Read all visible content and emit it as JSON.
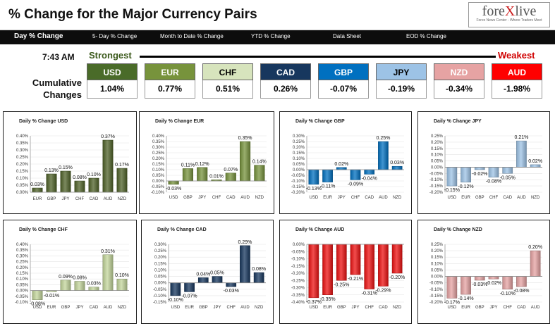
{
  "header": {
    "title": "% Change for the Major Currency Pairs",
    "logo": {
      "part1": "fore",
      "part2": "X",
      "part3": "live",
      "tagline": "Forex News Center - Where Traders Meet"
    }
  },
  "nav": {
    "items": [
      "Day % Change",
      "5- Day % Change",
      "Month to Date % Change",
      "YTD % Change",
      "Data Sheet",
      "EOD % Change"
    ],
    "active": "Day % Change"
  },
  "summary": {
    "time": "7:43 AM",
    "strongest": "Strongest",
    "weakest": "Weakest",
    "cumulative_label_1": "Cumulative",
    "cumulative_label_2": "Changes",
    "currencies": [
      {
        "name": "USD",
        "value": "1.04%",
        "color": "#4a6b29",
        "text_color": "#ffffff"
      },
      {
        "name": "EUR",
        "value": "0.77%",
        "color": "#77933c",
        "text_color": "#ffffff"
      },
      {
        "name": "CHF",
        "value": "0.51%",
        "color": "#d7e4bd",
        "text_color": "#000000"
      },
      {
        "name": "CAD",
        "value": "0.26%",
        "color": "#17375e",
        "text_color": "#ffffff"
      },
      {
        "name": "GBP",
        "value": "-0.07%",
        "color": "#0070c0",
        "text_color": "#ffffff"
      },
      {
        "name": "JPY",
        "value": "-0.19%",
        "color": "#9dc3e6",
        "text_color": "#000000"
      },
      {
        "name": "NZD",
        "value": "-0.34%",
        "color": "#e6a3a3",
        "text_color": "#ffffff"
      },
      {
        "name": "AUD",
        "value": "-1.98%",
        "color": "#ff0000",
        "text_color": "#ffffff"
      }
    ]
  },
  "chart_data": [
    {
      "type": "bar",
      "title": "Daily % Change USD",
      "bar_color": "#4f6228",
      "bg": "#ffffff",
      "categories": [
        "EUR",
        "GBP",
        "JPY",
        "CHF",
        "CAD",
        "AUD",
        "NZD"
      ],
      "values": [
        0.03,
        0.13,
        0.15,
        0.08,
        0.1,
        0.37,
        0.17
      ],
      "labels": [
        "0.03%",
        "0.13%",
        "0.15%",
        "0.08%",
        "0.10%",
        "0.37%",
        "0.17%"
      ],
      "ylim": [
        0,
        0.4
      ],
      "yticks": [
        0,
        0.05,
        0.1,
        0.15,
        0.2,
        0.25,
        0.3,
        0.35,
        0.4
      ],
      "yticklabels": [
        "0.00%",
        "0.05%",
        "0.10%",
        "0.15%",
        "0.20%",
        "0.25%",
        "0.30%",
        "0.35%",
        "0.40%"
      ]
    },
    {
      "type": "bar",
      "title": "Daily % Change EUR",
      "bar_color": "#77933c",
      "bg": "#ffffff",
      "categories": [
        "USD",
        "GBP",
        "JPY",
        "CHF",
        "CAD",
        "AUD",
        "NZD"
      ],
      "values": [
        -0.03,
        0.11,
        0.12,
        0.01,
        0.07,
        0.35,
        0.14
      ],
      "labels": [
        "-0.03%",
        "0.11%",
        "0.12%",
        "0.01%",
        "0.07%",
        "0.35%",
        "0.14%"
      ],
      "ylim": [
        -0.1,
        0.4
      ],
      "yticks": [
        -0.1,
        -0.05,
        0,
        0.05,
        0.1,
        0.15,
        0.2,
        0.25,
        0.3,
        0.35,
        0.4
      ],
      "yticklabels": [
        "-0.10%",
        "-0.05%",
        "0.00%",
        "0.05%",
        "0.10%",
        "0.15%",
        "0.20%",
        "0.25%",
        "0.30%",
        "0.35%",
        "0.40%"
      ]
    },
    {
      "type": "bar",
      "title": "Daily % Change GBP",
      "bar_color": "#0070c0",
      "bg": "#ffffff",
      "categories": [
        "USD",
        "EUR",
        "JPY",
        "CHF",
        "CAD",
        "AUD",
        "NZD"
      ],
      "values": [
        -0.13,
        -0.11,
        0.02,
        -0.09,
        -0.04,
        0.25,
        0.03
      ],
      "labels": [
        "-0.13%",
        "-0.11%",
        "0.02%",
        "-0.09%",
        "-0.04%",
        "0.25%",
        "0.03%"
      ],
      "ylim": [
        -0.2,
        0.3
      ],
      "yticks": [
        -0.2,
        -0.15,
        -0.1,
        -0.05,
        0,
        0.05,
        0.1,
        0.15,
        0.2,
        0.25,
        0.3
      ],
      "yticklabels": [
        "-0.20%",
        "-0.15%",
        "-0.10%",
        "-0.05%",
        "0.00%",
        "0.05%",
        "0.10%",
        "0.15%",
        "0.20%",
        "0.25%",
        "0.30%"
      ]
    },
    {
      "type": "bar",
      "title": "Daily % Change JPY",
      "bar_color": "#9dc3e6",
      "bg": "#ffffff",
      "categories": [
        "USD",
        "EUR",
        "GBP",
        "CHF",
        "CAD",
        "AUD",
        "NZD"
      ],
      "values": [
        -0.15,
        -0.12,
        -0.02,
        -0.08,
        -0.05,
        0.21,
        0.02
      ],
      "labels": [
        "-0.15%",
        "-0.12%",
        "-0.02%",
        "-0.08%",
        "-0.05%",
        "0.21%",
        "0.02%"
      ],
      "ylim": [
        -0.2,
        0.25
      ],
      "yticks": [
        -0.2,
        -0.15,
        -0.1,
        -0.05,
        0,
        0.05,
        0.1,
        0.15,
        0.2,
        0.25
      ],
      "yticklabels": [
        "-0.20%",
        "-0.15%",
        "-0.10%",
        "-0.05%",
        "0.00%",
        "0.05%",
        "0.10%",
        "0.15%",
        "0.20%",
        "0.25%"
      ]
    },
    {
      "type": "bar",
      "title": "Daily % Change CHF",
      "bar_color": "#c3d69b",
      "bg": "#ffffff",
      "categories": [
        "USD",
        "EUR",
        "GBP",
        "JPY",
        "CAD",
        "AUD",
        "NZD"
      ],
      "values": [
        -0.08,
        -0.01,
        0.09,
        0.08,
        0.03,
        0.31,
        0.1
      ],
      "labels": [
        "-0.08%",
        "-0.01%",
        "0.09%",
        "0.08%",
        "0.03%",
        "0.31%",
        "0.10%"
      ],
      "ylim": [
        -0.1,
        0.4
      ],
      "yticks": [
        -0.1,
        -0.05,
        0,
        0.05,
        0.1,
        0.15,
        0.2,
        0.25,
        0.3,
        0.35,
        0.4
      ],
      "yticklabels": [
        "-0.10%",
        "-0.05%",
        "0.00%",
        "0.05%",
        "0.10%",
        "0.15%",
        "0.20%",
        "0.25%",
        "0.30%",
        "0.35%",
        "0.40%"
      ]
    },
    {
      "type": "bar",
      "title": "Daily % Change CAD",
      "bar_color": "#17375e",
      "bg": "#ffffff",
      "categories": [
        "USD",
        "EUR",
        "GBP",
        "JPY",
        "CHF",
        "AUD",
        "NZD"
      ],
      "values": [
        -0.1,
        -0.07,
        0.04,
        0.05,
        -0.03,
        0.29,
        0.08
      ],
      "labels": [
        "-0.10%",
        "-0.07%",
        "0.04%",
        "0.05%",
        "-0.03%",
        "0.29%",
        "0.08%"
      ],
      "ylim": [
        -0.15,
        0.3
      ],
      "yticks": [
        -0.15,
        -0.1,
        -0.05,
        0,
        0.05,
        0.1,
        0.15,
        0.2,
        0.25,
        0.3
      ],
      "yticklabels": [
        "-0.15%",
        "-0.10%",
        "-0.05%",
        "0.00%",
        "0.05%",
        "0.10%",
        "0.15%",
        "0.20%",
        "0.25%",
        "0.30%"
      ]
    },
    {
      "type": "bar",
      "title": "Daily % Change AUD",
      "bar_color": "#ee1111",
      "bg": "#ffffff",
      "categories": [
        "USD",
        "EUR",
        "GBP",
        "JPY",
        "CHF",
        "CAD",
        "NZD"
      ],
      "values": [
        -0.37,
        -0.35,
        -0.25,
        -0.21,
        -0.31,
        -0.29,
        -0.2
      ],
      "labels": [
        "-0.37%",
        "-0.35%",
        "-0.25%",
        "-0.21%",
        "-0.31%",
        "-0.29%",
        "-0.20%"
      ],
      "ylim": [
        -0.4,
        0
      ],
      "yticks": [
        -0.4,
        -0.35,
        -0.3,
        -0.25,
        -0.2,
        -0.15,
        -0.1,
        -0.05,
        0
      ],
      "yticklabels": [
        "-0.40%",
        "-0.35%",
        "-0.30%",
        "-0.25%",
        "-0.20%",
        "-0.15%",
        "-0.10%",
        "-0.05%",
        "0.00%"
      ]
    },
    {
      "type": "bar",
      "title": "Daily % Change NZD",
      "bar_color": "#e6a3a3",
      "bg": "#ffffff",
      "categories": [
        "USD",
        "EUR",
        "GBP",
        "JPY",
        "CHF",
        "CAD",
        "AUD"
      ],
      "values": [
        -0.17,
        -0.14,
        -0.03,
        -0.02,
        -0.1,
        -0.08,
        0.2
      ],
      "labels": [
        "-0.17%",
        "-0.14%",
        "-0.03%",
        "-0.02%",
        "-0.10%",
        "-0.08%",
        "0.20%"
      ],
      "ylim": [
        -0.2,
        0.25
      ],
      "yticks": [
        -0.2,
        -0.15,
        -0.1,
        -0.05,
        0,
        0.05,
        0.1,
        0.15,
        0.2,
        0.25
      ],
      "yticklabels": [
        "-0.20%",
        "-0.15%",
        "-0.10%",
        "-0.05%",
        "0.00%",
        "0.05%",
        "0.10%",
        "0.15%",
        "0.20%",
        "0.25%"
      ]
    }
  ]
}
